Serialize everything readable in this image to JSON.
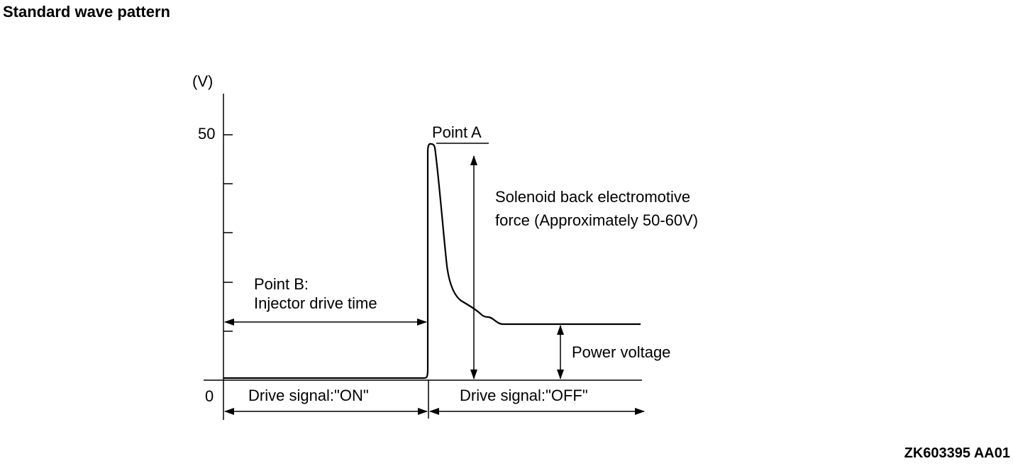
{
  "header": {
    "title": "Standard wave pattern"
  },
  "diagram": {
    "axis": {
      "unit_label": "(V)",
      "tick_50": "50",
      "tick_0": "0"
    },
    "point_a_label": "Point A",
    "back_emf_label": {
      "line1": "Solenoid back electromotive",
      "line2": "force (Approximately 50-60V)"
    },
    "point_b_label": {
      "line1": "Point B:",
      "line2": "Injector drive time"
    },
    "power_voltage_label": "Power voltage",
    "drive_on_label": "Drive signal:\"ON\"",
    "drive_off_label": "Drive signal:\"OFF\""
  },
  "footer": {
    "figure_id": "ZK603395 AA01"
  }
}
